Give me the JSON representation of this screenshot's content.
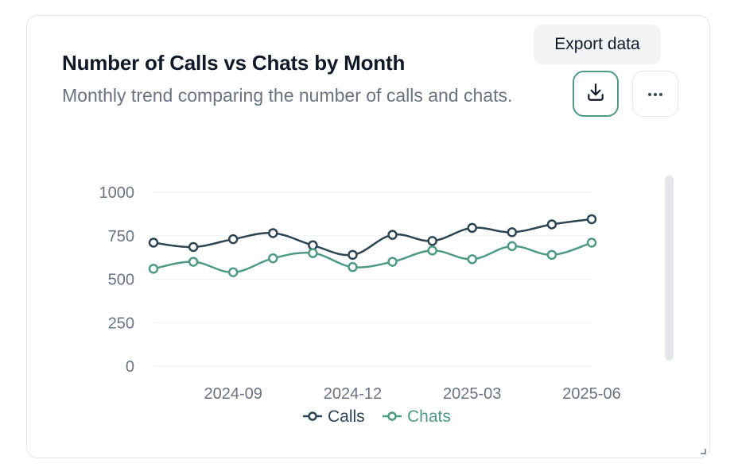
{
  "card": {
    "title": "Number of Calls vs Chats by Month",
    "subtitle": "Monthly trend comparing the number of calls and chats.",
    "export_tooltip": "Export data",
    "download_icon": "download-icon",
    "more_icon": "more-horizontal-icon"
  },
  "colors": {
    "calls": "#2d4452",
    "chats": "#4e9a84",
    "grid": "#eef0f2",
    "tick": "#6b7280"
  },
  "chart_data": {
    "type": "line",
    "title": "Number of Calls vs Chats by Month",
    "x": [
      "2024-07",
      "2024-08",
      "2024-09",
      "2024-10",
      "2024-11",
      "2024-12",
      "2025-01",
      "2025-02",
      "2025-03",
      "2025-04",
      "2025-05",
      "2025-06"
    ],
    "x_tick_labels": [
      "2024-09",
      "2024-12",
      "2025-03",
      "2025-06"
    ],
    "y_ticks": [
      0,
      250,
      500,
      750,
      1000
    ],
    "ylim": [
      0,
      1000
    ],
    "series": [
      {
        "name": "Calls",
        "values": [
          710,
          685,
          730,
          765,
          695,
          640,
          755,
          720,
          795,
          770,
          815,
          845
        ]
      },
      {
        "name": "Chats",
        "values": [
          560,
          600,
          540,
          620,
          650,
          570,
          600,
          665,
          615,
          690,
          640,
          710
        ]
      }
    ],
    "grid": true,
    "legend": "bottom-center"
  }
}
